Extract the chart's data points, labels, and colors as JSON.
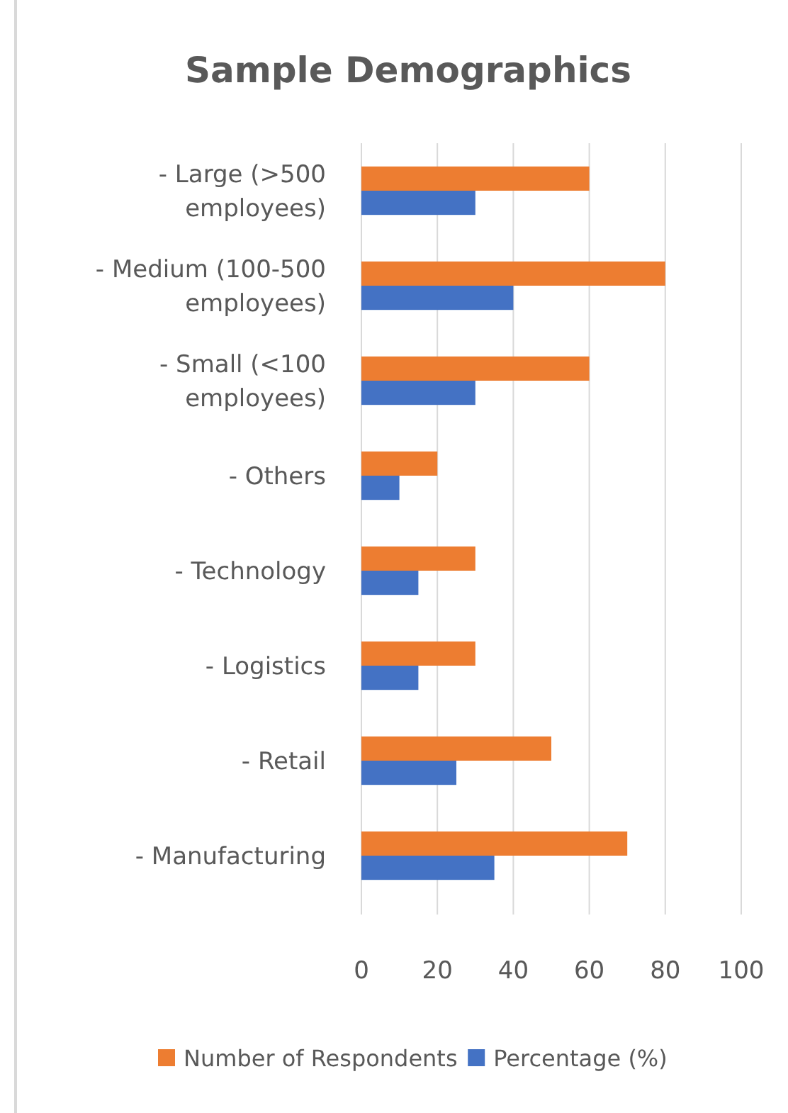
{
  "chart_data": {
    "type": "bar",
    "orientation": "horizontal",
    "title": "Sample Demographics",
    "categories": [
      "- Large (>500 employees)",
      "- Medium (100-500 employees)",
      "- Small (<100 employees)",
      "- Others",
      "- Technology",
      "- Logistics",
      "- Retail",
      "- Manufacturing"
    ],
    "series": [
      {
        "name": "Number of Respondents",
        "color": "#ed7d31",
        "values": [
          60,
          80,
          60,
          20,
          30,
          30,
          50,
          70
        ]
      },
      {
        "name": "Percentage (%)",
        "color": "#4472c4",
        "values": [
          30,
          40,
          30,
          10,
          15,
          15,
          25,
          35
        ]
      }
    ],
    "xlim": [
      0,
      100
    ],
    "xticks": [
      0,
      20,
      40,
      60,
      80,
      100
    ],
    "grid": "x",
    "legend": "bottom"
  }
}
